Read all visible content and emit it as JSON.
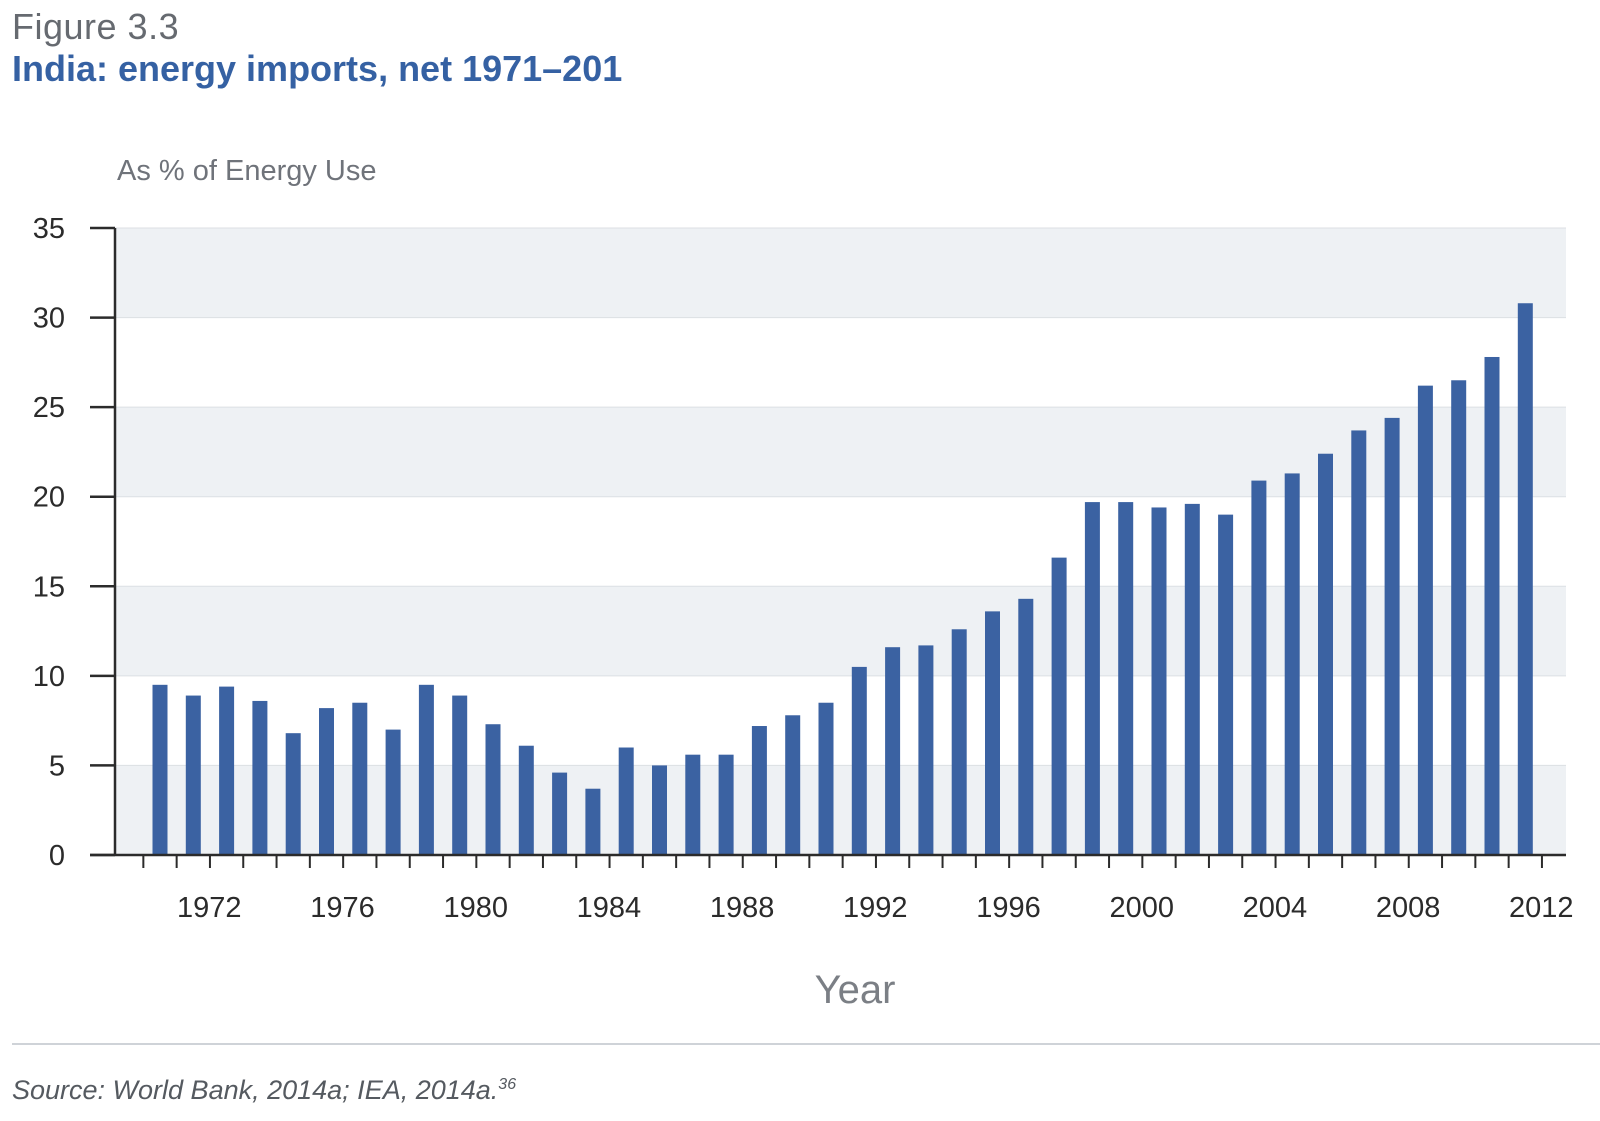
{
  "figure_label": "Figure 3.3",
  "title": "India: energy imports, net 1971–201",
  "source": {
    "text": "Source: World Bank, 2014a; IEA, 2014a.",
    "footnote": "36"
  },
  "colors": {
    "bar": "#3b62a2",
    "title": "#3561a3",
    "band": "#eef1f4"
  },
  "chart_data": {
    "type": "bar",
    "ylabel": "As % of Energy Use",
    "xlabel": "Year",
    "ylim": [
      0,
      35
    ],
    "yticks": [
      0,
      5,
      10,
      15,
      20,
      25,
      30,
      35
    ],
    "xtick_labels": [
      "1972",
      "1976",
      "1980",
      "1984",
      "1988",
      "1992",
      "1996",
      "2000",
      "2004",
      "2008",
      "2012"
    ],
    "categories": [
      1971,
      1972,
      1973,
      1974,
      1975,
      1976,
      1977,
      1978,
      1979,
      1980,
      1981,
      1982,
      1983,
      1984,
      1985,
      1986,
      1987,
      1988,
      1989,
      1990,
      1991,
      1992,
      1993,
      1994,
      1995,
      1996,
      1997,
      1998,
      1999,
      2000,
      2001,
      2002,
      2003,
      2004,
      2005,
      2006,
      2007,
      2008,
      2009,
      2010,
      2011,
      2012
    ],
    "values": [
      9.5,
      8.9,
      9.4,
      8.6,
      6.8,
      8.2,
      8.5,
      7.0,
      9.5,
      8.9,
      7.3,
      6.1,
      4.6,
      3.7,
      6.0,
      5.0,
      5.6,
      5.6,
      7.2,
      7.8,
      8.5,
      10.5,
      11.6,
      11.7,
      12.6,
      13.6,
      14.3,
      16.6,
      19.7,
      19.7,
      19.4,
      19.6,
      19.0,
      20.9,
      21.3,
      22.4,
      23.7,
      24.4,
      26.2,
      26.5,
      27.8,
      30.8
    ],
    "grid": "alternating horizontal bands"
  }
}
